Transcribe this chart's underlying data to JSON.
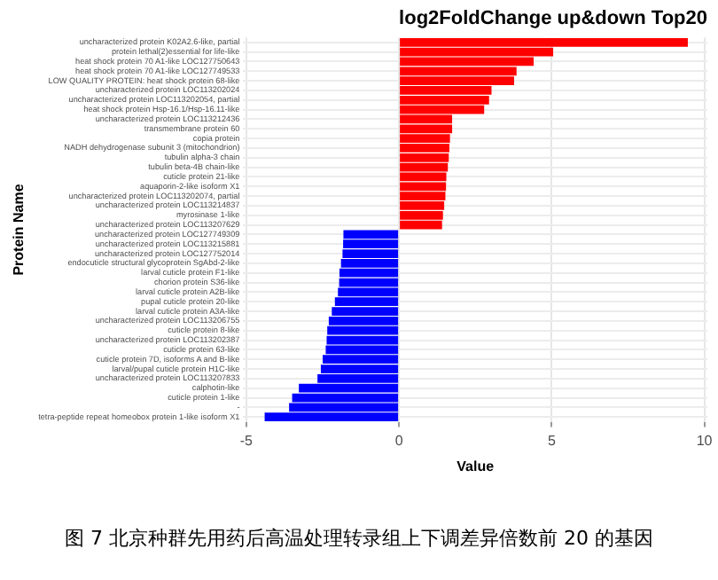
{
  "chart_data": {
    "type": "bar",
    "orientation": "horizontal",
    "title": "log2FoldChange up&down Top20",
    "xlabel": "Value",
    "ylabel": "Protein Name",
    "categories": [
      "uncharacterized protein K02A2.6-like, partial",
      "protein lethal(2)essential for life-like",
      "heat shock protein 70 A1-like LOC127750643",
      "heat shock protein 70 A1-like LOC127749533",
      "LOW QUALITY PROTEIN: heat shock protein 68-like",
      "uncharacterized protein LOC113202024",
      "uncharacterized protein LOC113202054, partial",
      "heat shock protein Hsp-16.1/Hsp-16.11-like",
      "uncharacterized protein LOC113212436",
      "transmembrane protein 60",
      "copia protein",
      "NADH dehydrogenase subunit 3 (mitochondrion)",
      "tubulin alpha-3 chain",
      "tubulin beta-4B chain-like",
      "cuticle protein 21-like",
      "aquaporin-2-like isoform X1",
      "uncharacterized protein LOC113202074, partial",
      "uncharacterized protein LOC113214837",
      "myrosinase 1-like",
      "uncharacterized protein LOC113207629",
      "uncharacterized protein LOC127749309",
      "uncharacterized protein LOC113215881",
      "uncharacterized protein LOC127752014",
      "endocuticle structural glycoprotein SgAbd-2-like",
      "larval cuticle protein F1-like",
      "chorion protein S36-like",
      "larval cuticle protein A2B-like",
      "pupal cuticle protein 20-like",
      "larval cuticle protein A3A-like",
      "uncharacterized protein LOC113206755",
      "cuticle protein 8-like",
      "uncharacterized protein LOC113202387",
      "cuticle protein 63-like",
      "cuticle protein 7D, isoforms A and B-like",
      "larval/pupal cuticle protein H1C-like",
      "uncharacterized protein LOC113207833",
      "calphotin-like",
      "cuticle protein 1-like",
      "-",
      "tetra-peptide repeat homeobox protein 1-like isoform X1"
    ],
    "values": [
      9.46,
      5.05,
      4.41,
      3.85,
      3.77,
      3.03,
      2.95,
      2.79,
      1.74,
      1.74,
      1.67,
      1.65,
      1.63,
      1.6,
      1.55,
      1.54,
      1.52,
      1.48,
      1.44,
      1.41,
      -1.82,
      -1.83,
      -1.85,
      -1.9,
      -1.95,
      -1.96,
      -2.0,
      -2.1,
      -2.2,
      -2.3,
      -2.35,
      -2.37,
      -2.4,
      -2.5,
      -2.56,
      -2.67,
      -3.28,
      -3.5,
      -3.6,
      -4.4
    ],
    "colors": [
      "#ff0000",
      "#ff0000",
      "#ff0000",
      "#ff0000",
      "#ff0000",
      "#ff0000",
      "#ff0000",
      "#ff0000",
      "#ff0000",
      "#ff0000",
      "#ff0000",
      "#ff0000",
      "#ff0000",
      "#ff0000",
      "#ff0000",
      "#ff0000",
      "#ff0000",
      "#ff0000",
      "#ff0000",
      "#ff0000",
      "#0000ff",
      "#0000ff",
      "#0000ff",
      "#0000ff",
      "#0000ff",
      "#0000ff",
      "#0000ff",
      "#0000ff",
      "#0000ff",
      "#0000ff",
      "#0000ff",
      "#0000ff",
      "#0000ff",
      "#0000ff",
      "#0000ff",
      "#0000ff",
      "#0000ff",
      "#0000ff",
      "#0000ff",
      "#0000ff"
    ],
    "xlim": [
      -5.1,
      10.1
    ],
    "xticks": [
      -5,
      0,
      5,
      10
    ],
    "grid": true,
    "annotations": [
      "图 7 北京种群先用药后高温处理转录组上下调差异倍数前 20 的基因"
    ]
  }
}
